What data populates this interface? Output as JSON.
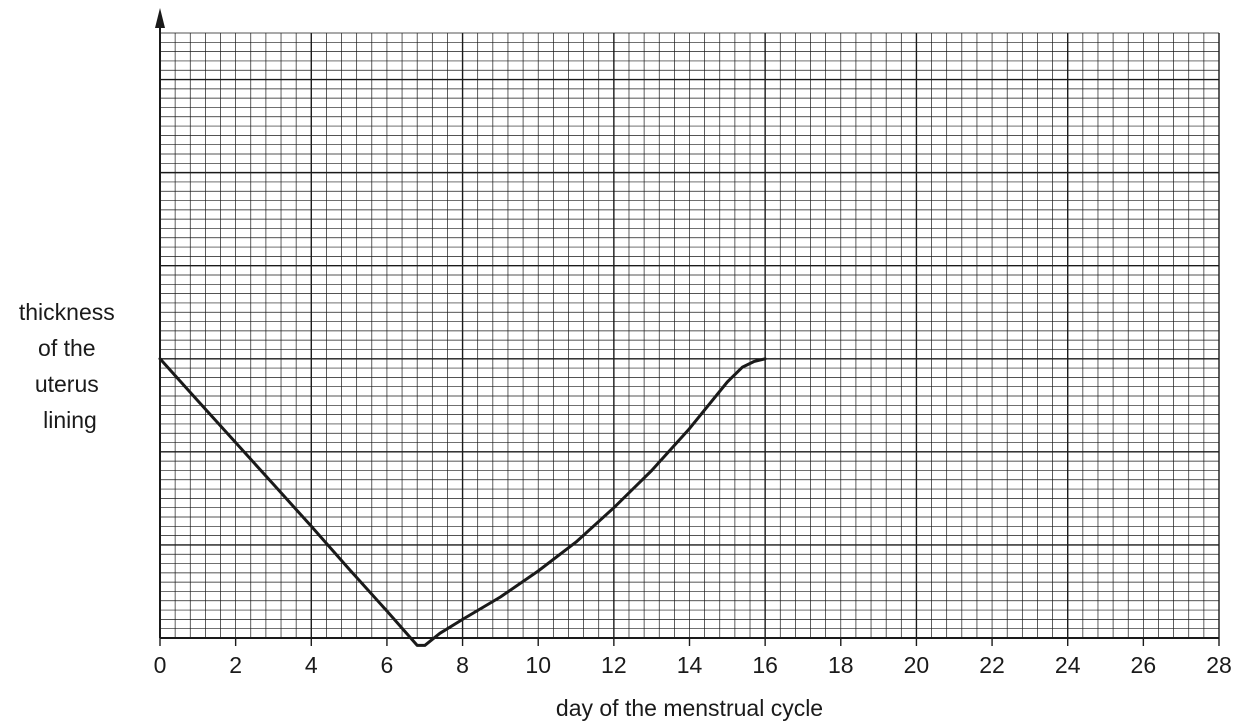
{
  "chart_data": {
    "type": "line",
    "title": "",
    "xlabel": "day of the menstrual cycle",
    "ylabel_lines": [
      "thickness",
      "of the",
      "uterus",
      "lining"
    ],
    "xlim": [
      0,
      28
    ],
    "x_ticks": [
      "0",
      "2",
      "4",
      "6",
      "8",
      "10",
      "12",
      "14",
      "16",
      "18",
      "20",
      "22",
      "24",
      "26",
      "28"
    ],
    "ylim": [
      0,
      6.5
    ],
    "y_ticks_shown": false,
    "grid": true,
    "grid_minor_per_major_x": 10,
    "grid_minor_per_major_y": 10,
    "x_major_step": 4,
    "y_major_step": 1,
    "line_color": "#1a1a1a",
    "grid_color": "#1a1a1a",
    "series": [
      {
        "x": [
          0,
          1,
          2,
          3,
          4,
          5,
          6,
          6.8,
          7.0,
          7.4,
          8,
          9,
          10,
          11,
          12,
          13,
          14,
          15,
          15.4,
          15.7,
          16
        ],
        "y": [
          3.0,
          2.55,
          2.1,
          1.65,
          1.2,
          0.74,
          0.29,
          -0.08,
          -0.08,
          0.05,
          0.2,
          0.44,
          0.72,
          1.03,
          1.4,
          1.8,
          2.25,
          2.75,
          2.91,
          2.97,
          3.0
        ]
      }
    ]
  }
}
